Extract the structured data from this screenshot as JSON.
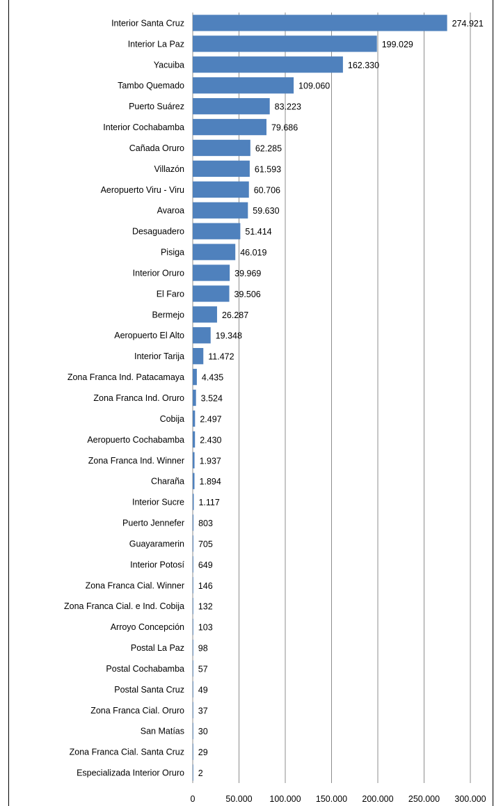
{
  "chart_data": {
    "type": "bar",
    "orientation": "horizontal",
    "categories": [
      "Interior Santa Cruz",
      "Interior La Paz",
      "Yacuiba",
      "Tambo Quemado",
      "Puerto Suárez",
      "Interior Cochabamba",
      "Cañada Oruro",
      "Villazón",
      "Aeropuerto Viru - Viru",
      "Avaroa",
      "Desaguadero",
      "Pisiga",
      "Interior Oruro",
      "El Faro",
      "Bermejo",
      "Aeropuerto El Alto",
      "Interior Tarija",
      "Zona Franca Ind. Patacamaya",
      "Zona Franca Ind. Oruro",
      "Cobija",
      "Aeropuerto Cochabamba",
      "Zona Franca Ind. Winner",
      "Charaña",
      "Interior Sucre",
      "Puerto Jennefer",
      "Guayaramerin",
      "Interior Potosí",
      "Zona Franca Cial. Winner",
      "Zona Franca Cial. e Ind. Cobija",
      "Arroyo Concepción",
      "Postal La Paz",
      "Postal Cochabamba",
      "Postal Santa Cruz",
      "Zona Franca Cial. Oruro",
      "San Matías",
      "Zona Franca Cial. Santa Cruz",
      "Especializada Interior Oruro"
    ],
    "values": [
      274921,
      199029,
      162330,
      109060,
      83223,
      79686,
      62285,
      61593,
      60706,
      59630,
      51414,
      46019,
      39969,
      39506,
      26287,
      19348,
      11472,
      4435,
      3524,
      2497,
      2430,
      1937,
      1894,
      1117,
      803,
      705,
      649,
      146,
      132,
      103,
      98,
      57,
      49,
      37,
      30,
      29,
      2
    ],
    "value_labels": [
      "274.921",
      "199.029",
      "162.330",
      "109.060",
      "83.223",
      "79.686",
      "62.285",
      "61.593",
      "60.706",
      "59.630",
      "51.414",
      "46.019",
      "39.969",
      "39.506",
      "26.287",
      "19.348",
      "11.472",
      "4.435",
      "3.524",
      "2.497",
      "2.430",
      "1.937",
      "1.894",
      "1.117",
      "803",
      "705",
      "649",
      "146",
      "132",
      "103",
      "98",
      "57",
      "49",
      "37",
      "30",
      "29",
      "2"
    ],
    "xlim": [
      0,
      300000
    ],
    "x_ticks": [
      "0",
      "50.000",
      "100.000",
      "150.000",
      "200.000",
      "250.000",
      "300.000"
    ],
    "grid": true,
    "bar_color": "#4f81bd",
    "grid_color": "#8c8c8c"
  }
}
